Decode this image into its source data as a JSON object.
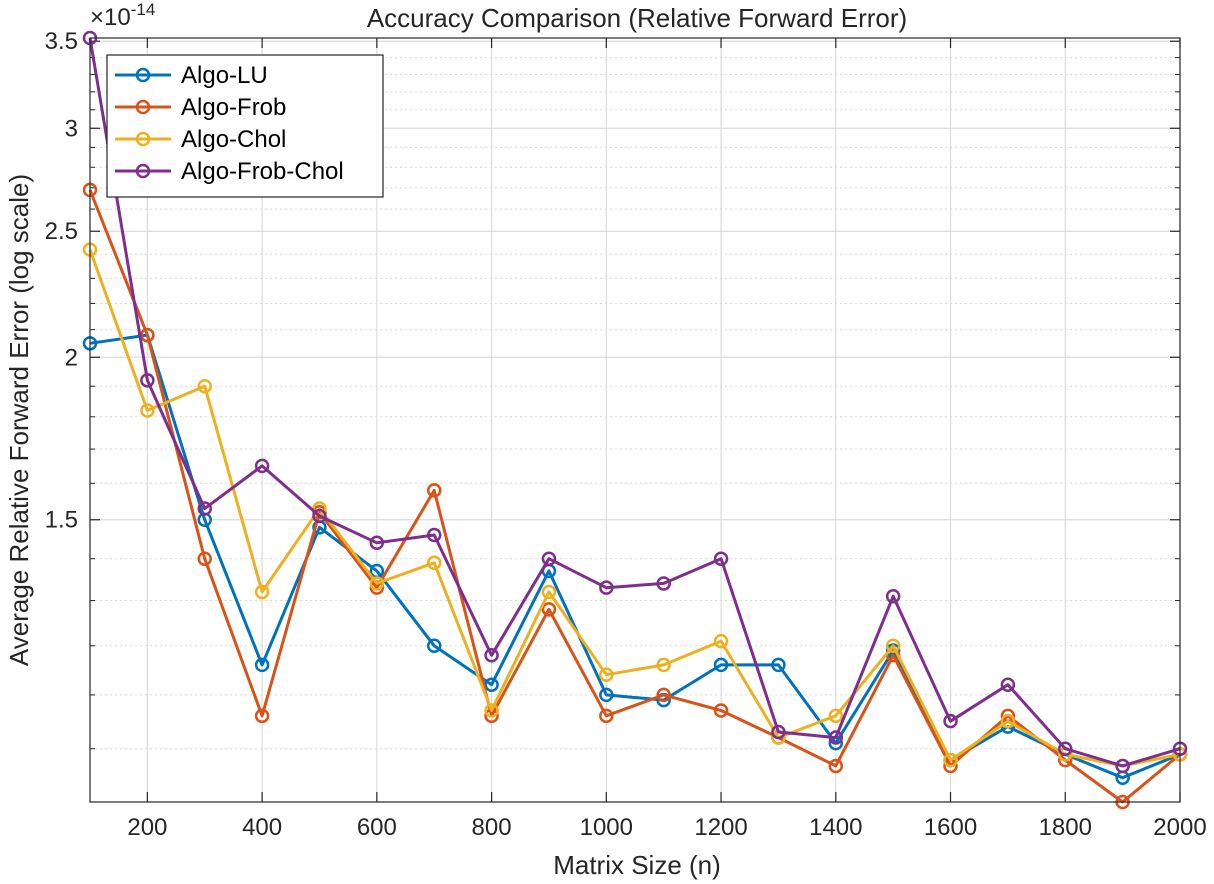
{
  "chart_data": {
    "type": "line",
    "title": "Accuracy Comparison (Relative Forward Error)",
    "xlabel": "Matrix Size (n)",
    "ylabel": "Average Relative Forward Error (log scale)",
    "y_exponent_label": "×10",
    "y_exponent_power": "-14",
    "xlim": [
      100,
      2000
    ],
    "ylim": [
      0.91,
      3.52
    ],
    "yscale": "log",
    "grid": true,
    "minor_grid": true,
    "legend_position": "top-left",
    "x": [
      100,
      200,
      300,
      400,
      500,
      600,
      700,
      800,
      900,
      1000,
      1100,
      1200,
      1300,
      1400,
      1500,
      1600,
      1700,
      1800,
      1900,
      2000
    ],
    "x_ticks": [
      200,
      400,
      600,
      800,
      1000,
      1200,
      1400,
      1600,
      1800,
      2000
    ],
    "x_tick_labels": [
      "200",
      "400",
      "600",
      "800",
      "1000",
      "1200",
      "1400",
      "1600",
      "1800",
      "2000"
    ],
    "y_ticks": [
      1.5,
      2,
      2.5,
      3,
      3.5
    ],
    "y_tick_labels": [
      "1.5",
      "2",
      "2.5",
      "3",
      "3.5"
    ],
    "y_minor_ticks": [
      1.0,
      1.1,
      1.2,
      1.3,
      1.4,
      1.6,
      1.7,
      1.8,
      1.9,
      2.1,
      2.2,
      2.3,
      2.4,
      2.6,
      2.7,
      2.8,
      2.9,
      3.1,
      3.2,
      3.3,
      3.4
    ],
    "series": [
      {
        "name": "Algo-LU",
        "color": "#0072BD",
        "values": [
          2.05,
          2.08,
          1.5,
          1.16,
          1.48,
          1.37,
          1.2,
          1.12,
          1.37,
          1.1,
          1.09,
          1.16,
          1.16,
          1.01,
          1.19,
          0.98,
          1.04,
          0.99,
          0.95,
          0.99
        ]
      },
      {
        "name": "Algo-Frob",
        "color": "#D95319",
        "values": [
          2.69,
          2.08,
          1.4,
          1.06,
          1.52,
          1.33,
          1.58,
          1.06,
          1.28,
          1.06,
          1.1,
          1.07,
          1.02,
          0.97,
          1.18,
          0.97,
          1.06,
          0.98,
          0.91,
          0.99
        ]
      },
      {
        "name": "Algo-Chol",
        "color": "#EDB120",
        "values": [
          2.42,
          1.82,
          1.9,
          1.32,
          1.53,
          1.34,
          1.39,
          1.07,
          1.32,
          1.14,
          1.16,
          1.21,
          1.02,
          1.06,
          1.2,
          0.98,
          1.05,
          0.99,
          0.97,
          0.99
        ]
      },
      {
        "name": "Algo-Frob-Chol",
        "color": "#7E2F8E",
        "values": [
          3.52,
          1.92,
          1.53,
          1.65,
          1.51,
          1.44,
          1.46,
          1.18,
          1.4,
          1.33,
          1.34,
          1.4,
          1.03,
          1.02,
          1.31,
          1.05,
          1.12,
          1.0,
          0.97,
          1.0
        ]
      }
    ]
  }
}
